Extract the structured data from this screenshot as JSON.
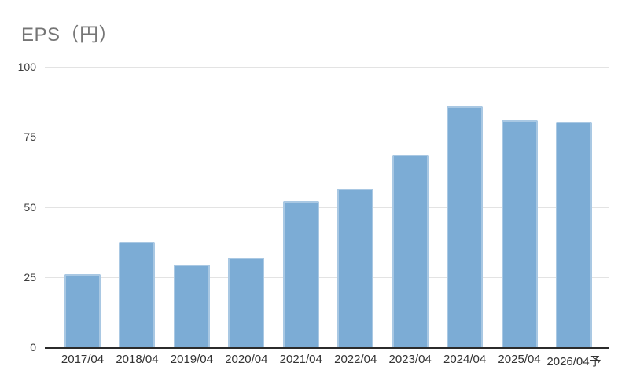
{
  "chart_data": {
    "type": "bar",
    "title": "EPS（円）",
    "categories": [
      "2017/04",
      "2018/04",
      "2019/04",
      "2020/04",
      "2021/04",
      "2022/04",
      "2023/04",
      "2024/04",
      "2025/04",
      "2026/04予"
    ],
    "values": [
      26,
      37.5,
      29.5,
      32,
      52,
      56.5,
      68.5,
      86,
      81,
      80.5
    ],
    "xlabel": "",
    "ylabel": "",
    "ylim": [
      0,
      100
    ],
    "y_ticks": [
      0,
      25,
      50,
      75,
      100
    ],
    "grid": "horizontal",
    "legend": "none",
    "bar_color": "#7cacd5",
    "bar_border_color": "#a9c8e3",
    "gridline_color": "#e3e3e3",
    "axis_line_color": "#2b2b2b",
    "title_color": "#757575",
    "tick_label_color": "#3c3c3c"
  }
}
